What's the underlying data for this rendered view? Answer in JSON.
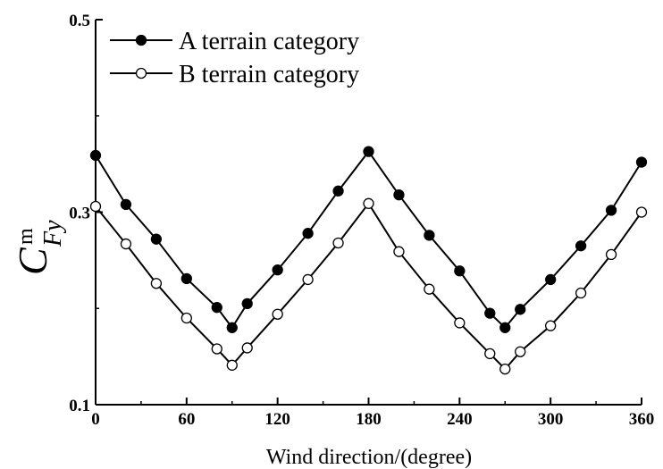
{
  "chart_data": {
    "type": "line",
    "xlabel": "Wind direction/(degree)",
    "ylabel": {
      "base": "C",
      "sup": "m",
      "sub": "Fy"
    },
    "xlim": [
      0,
      360
    ],
    "ylim": [
      0.1,
      0.5
    ],
    "x_ticks": [
      0,
      60,
      120,
      180,
      240,
      300,
      360
    ],
    "y_ticks": [
      0.1,
      0.3,
      0.5
    ],
    "y_tick_labels": [
      "0.1",
      "0.3",
      "0.5"
    ],
    "grid": false,
    "legend_position": "top-left",
    "x": [
      0,
      20,
      40,
      60,
      80,
      90,
      100,
      120,
      140,
      160,
      180,
      200,
      220,
      240,
      260,
      270,
      280,
      300,
      320,
      340,
      360
    ],
    "series": [
      {
        "name": "A terrain category",
        "marker": "filled",
        "values": [
          0.359,
          0.308,
          0.272,
          0.231,
          0.201,
          0.18,
          0.205,
          0.24,
          0.278,
          0.322,
          0.363,
          0.318,
          0.276,
          0.239,
          0.195,
          0.18,
          0.199,
          0.23,
          0.265,
          0.302,
          0.352
        ]
      },
      {
        "name": "B terrain category",
        "marker": "open",
        "values": [
          0.306,
          0.267,
          0.226,
          0.19,
          0.158,
          0.141,
          0.159,
          0.194,
          0.23,
          0.268,
          0.309,
          0.259,
          0.22,
          0.185,
          0.153,
          0.137,
          0.155,
          0.182,
          0.216,
          0.256,
          0.3
        ]
      }
    ]
  }
}
